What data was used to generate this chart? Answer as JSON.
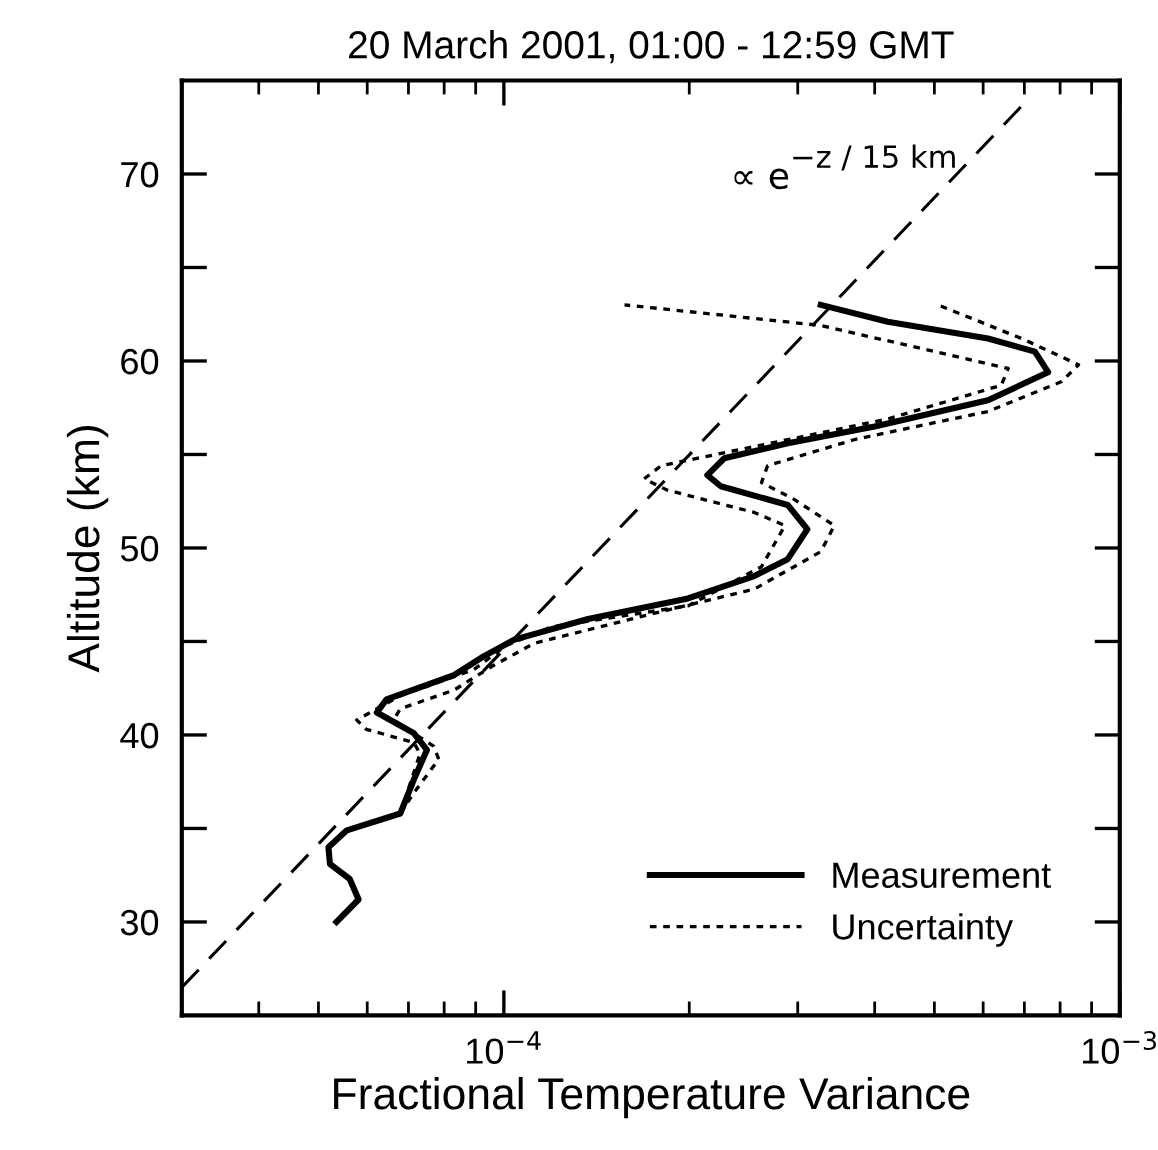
{
  "chart_data": {
    "type": "line",
    "title": "20 March 2001, 01:00 - 12:59 GMT",
    "xlabel": "Fractional Temperature Variance",
    "ylabel": "Altitude (km)",
    "log": "x",
    "xlim": [
      3e-05,
      0.001
    ],
    "ylim": [
      25,
      75
    ],
    "xticks": [
      {
        "value": 0.0001,
        "label": "10$^{−4}$"
      },
      {
        "value": 0.001,
        "label": "10$^{−3}$"
      }
    ],
    "yticks": [
      30,
      {
        "value": 35,
        "label": null
      },
      40,
      {
        "value": 45,
        "label": null
      },
      50,
      {
        "value": 55,
        "label": null
      },
      60,
      {
        "value": 65,
        "label": null
      },
      70
    ],
    "grid": false,
    "legend": "bottom right",
    "marker": "none",
    "annotations": [
      "∝ e$^{−z / 15 km}$"
    ],
    "series": [
      {
        "name": "Measurement",
        "color": "#000000",
        "line_style": "solid",
        "x": [
          5.35e-05,
          5.81e-05,
          5.62e-05,
          5.22e-05,
          5.19e-05,
          5.56e-05,
          6.79e-05,
          7.14e-05,
          7.5e-05,
          7.14e-05,
          6.22e-05,
          6.45e-05,
          8.3e-05,
          9.27e-05,
          0.000104,
          0.000137,
          0.000199,
          0.000255,
          0.000289,
          0.000311,
          0.000289,
          0.000225,
          0.000214,
          0.000228,
          0.000289,
          0.0004,
          0.000611,
          0.000765,
          0.000728,
          0.000611,
          0.00042,
          0.000327
        ],
        "values": [
          30,
          31.2,
          32.3,
          33.1,
          34.0,
          34.9,
          35.8,
          37.6,
          39.2,
          40.1,
          41.2,
          41.9,
          43.2,
          44.2,
          45.1,
          46.2,
          47.3,
          48.5,
          49.4,
          51.0,
          52.3,
          53.3,
          53.9,
          54.8,
          55.6,
          56.5,
          57.9,
          59.4,
          60.5,
          61.2,
          62.1,
          63.0
        ]
      },
      {
        "name": "Uncertainty",
        "color": "#000000",
        "line_style": "dotted",
        "x": [
          6.79e-05,
          7.31e-05,
          7.14e-05,
          5.98e-05,
          5.77e-05,
          6.79e-05,
          8.94e-05,
          0.000101,
          0.00012,
          0.000199,
          0.000262,
          0.000286,
          0.000255,
          0.000184,
          0.000169,
          0.00018,
          0.000262,
          0.00042,
          0.000642,
          0.000659,
          0.000327,
          0.000157
        ],
        "values": [
          35.8,
          39.0,
          39.6,
          40.3,
          40.8,
          42.1,
          43.5,
          44.8,
          45.8,
          46.9,
          49.0,
          51.2,
          51.9,
          53.1,
          53.7,
          54.4,
          55.5,
          56.9,
          58.7,
          59.6,
          61.9,
          63.0
        ]
      },
      {
        "color": "#000000",
        "line_style": "dotted",
        "x": [
          6.79e-05,
          7.14e-05,
          7.84e-05,
          7.69e-05,
          6.62e-05,
          6.79e-05,
          8.3e-05,
          9.6e-05,
          0.000112,
          0.000175,
          0.000255,
          0.000311,
          0.000327,
          0.000344,
          0.000296,
          0.000262,
          0.000268,
          0.000371,
          0.000611,
          0.000805,
          0.000857,
          0.000693,
          0.000507
        ],
        "values": [
          35.8,
          36.9,
          38.7,
          39.4,
          40.8,
          41.4,
          42.4,
          43.7,
          44.9,
          46.5,
          47.8,
          49.4,
          49.8,
          51.2,
          52.6,
          53.5,
          54.4,
          55.8,
          57.3,
          58.9,
          59.8,
          61.2,
          63.0
        ]
      },
      {
        "color": "#000000",
        "line_style": "dashed",
        "x": [
          3e-05,
          0.00071
        ],
        "values": [
          26.5,
          74.0
        ]
      }
    ]
  }
}
